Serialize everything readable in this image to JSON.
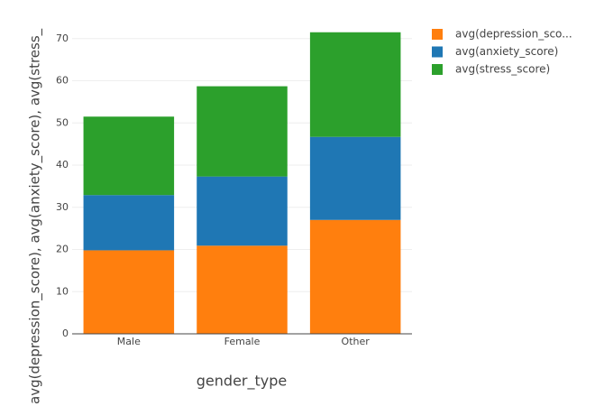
{
  "chart_data": {
    "type": "stacked_bar",
    "x_label": "gender_type",
    "y_label": "avg(depression_score), avg(anxiety_score), avg(stress_",
    "categories": [
      "Male",
      "Female",
      "Other"
    ],
    "series": [
      {
        "name": "avg(depression_sco...",
        "color": "#ff7f0e",
        "values": [
          19.8,
          20.9,
          27.0
        ]
      },
      {
        "name": "avg(anxiety_score)",
        "color": "#1f77b4",
        "values": [
          13.1,
          16.4,
          19.7
        ]
      },
      {
        "name": "avg(stress_score)",
        "color": "#2ca02c",
        "values": [
          18.6,
          21.4,
          24.8
        ]
      }
    ],
    "ylim": [
      0,
      75.3
    ],
    "yticks": [
      0,
      10,
      20,
      30,
      40,
      50,
      60,
      70
    ],
    "grid": true
  }
}
